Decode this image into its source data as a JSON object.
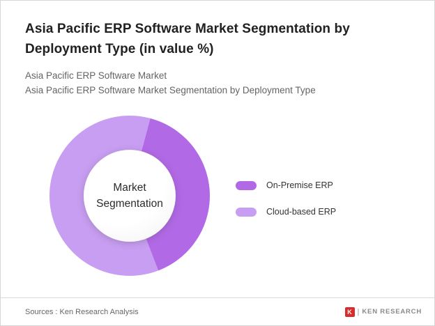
{
  "page": {
    "title": "Asia Pacific ERP Software Market Segmentation by Deployment Type (in value %)",
    "subtitle_line1": "Asia Pacific ERP Software Market",
    "subtitle_line2": "Asia Pacific ERP Software Market Segmentation by Deployment Type",
    "footer": {
      "sources": "Sources : Ken Research Analysis",
      "brand_separator": "|",
      "brand": "KEN RESEARCH",
      "brand_mark_letter": "K",
      "brand_color": "#d92b2b"
    }
  },
  "chart_data": {
    "type": "pie",
    "subtype": "donut",
    "title": "Asia Pacific ERP Software Market Segmentation by Deployment Type (in value %)",
    "center_label": "Market Segmentation",
    "categories": [
      "On-Premise ERP",
      "Cloud-based ERP"
    ],
    "values": [
      40,
      60
    ],
    "colors": [
      "#b269e6",
      "#c89ef2"
    ],
    "start_angle_deg": 15,
    "legend_position": "right",
    "data_labels": false
  }
}
